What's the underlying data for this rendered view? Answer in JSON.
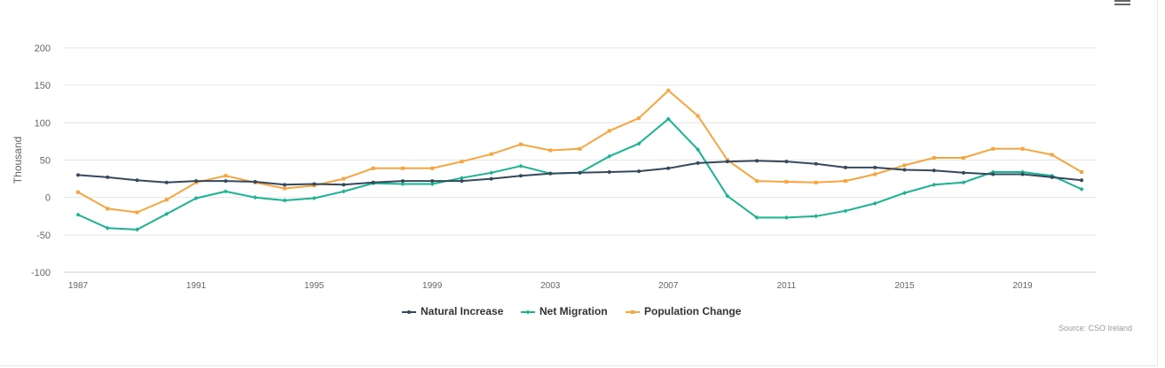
{
  "chart_data": {
    "type": "line",
    "title": "",
    "xlabel": "",
    "ylabel": "Thousand",
    "ylim": [
      -100,
      200
    ],
    "y_ticks": [
      200,
      150,
      100,
      50,
      0,
      -50,
      -100
    ],
    "x_tick_labels": [
      "1987",
      "1991",
      "1995",
      "1999",
      "2003",
      "2007",
      "2011",
      "2015",
      "2019"
    ],
    "x": [
      1987,
      1988,
      1989,
      1990,
      1991,
      1992,
      1993,
      1994,
      1995,
      1996,
      1997,
      1998,
      1999,
      2000,
      2001,
      2002,
      2003,
      2004,
      2005,
      2006,
      2007,
      2008,
      2009,
      2010,
      2011,
      2012,
      2013,
      2014,
      2015,
      2016,
      2017,
      2018,
      2019,
      2020,
      2021
    ],
    "grid": true,
    "legend_position": "bottom-center",
    "series": [
      {
        "name": "Natural Increase",
        "color": "#34495e",
        "marker": "circle",
        "values": [
          30,
          27,
          23,
          20,
          22,
          22,
          21,
          17,
          18,
          17,
          20,
          22,
          22,
          22,
          25,
          29,
          32,
          33,
          34,
          35,
          39,
          46,
          48,
          49,
          48,
          45,
          40,
          40,
          37,
          36,
          33,
          31,
          31,
          27,
          23
        ]
      },
      {
        "name": "Net Migration",
        "color": "#1ab394",
        "marker": "diamond",
        "values": [
          -23,
          -41,
          -43,
          -22,
          -1,
          8,
          0,
          -4,
          -1,
          8,
          19,
          18,
          18,
          26,
          33,
          42,
          32,
          33,
          55,
          72,
          105,
          64,
          2,
          -27,
          -27,
          -25,
          -18,
          -8,
          6,
          17,
          20,
          34,
          34,
          29,
          11
        ]
      },
      {
        "name": "Population Change",
        "color": "#f7a541",
        "marker": "square",
        "values": [
          7,
          -15,
          -20,
          -3,
          20,
          29,
          20,
          12,
          16,
          25,
          39,
          39,
          39,
          48,
          58,
          71,
          63,
          65,
          89,
          106,
          143,
          109,
          50,
          22,
          21,
          20,
          22,
          31,
          43,
          53,
          53,
          65,
          65,
          57,
          34
        ]
      }
    ],
    "source": "Source: CSO Ireland"
  }
}
